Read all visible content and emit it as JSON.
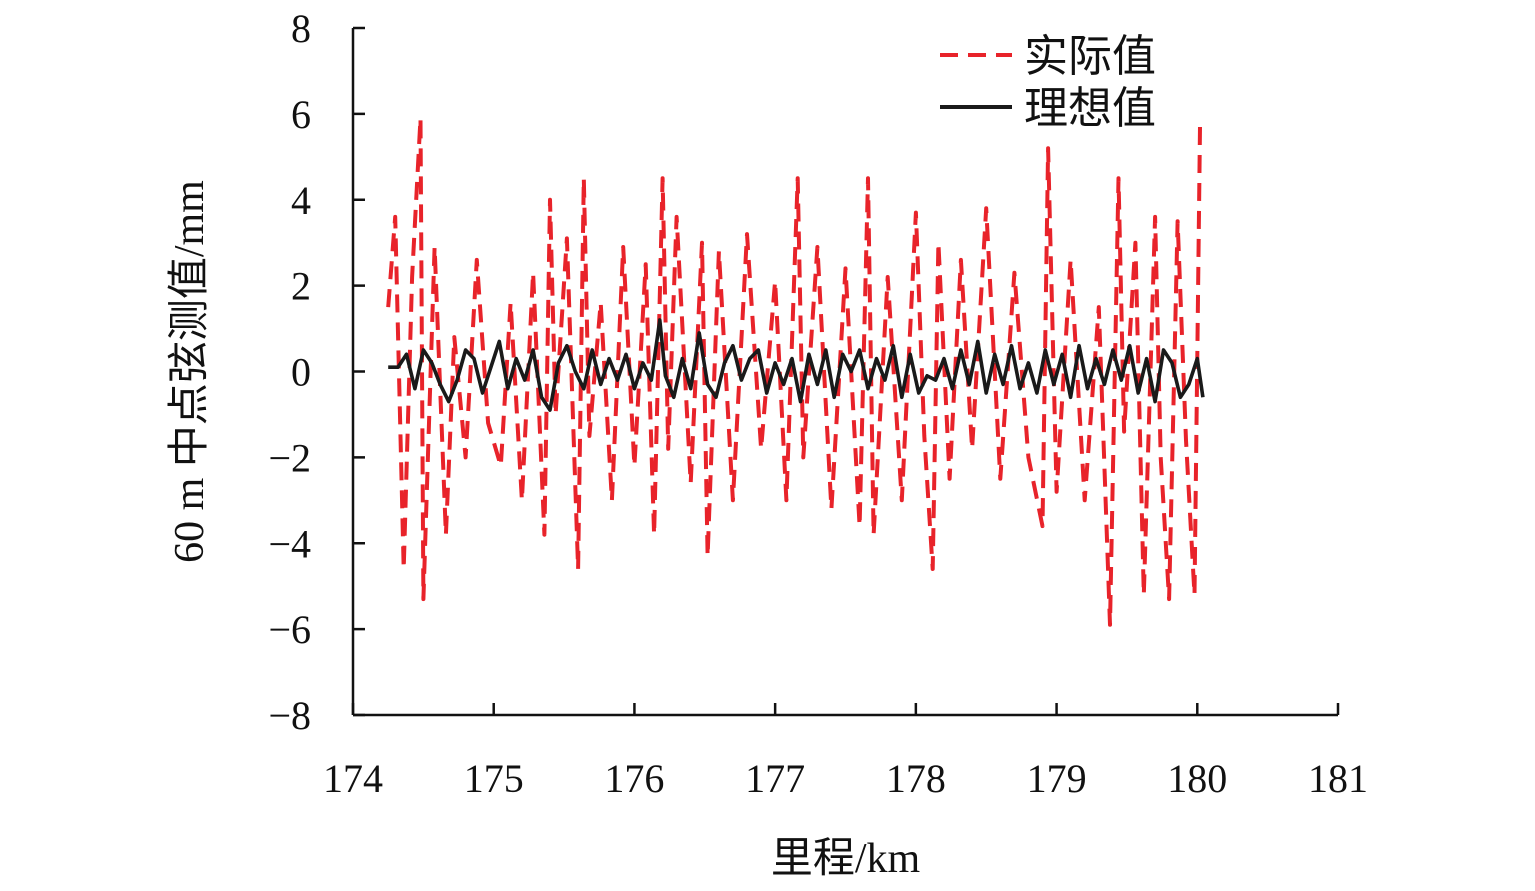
{
  "chart_data": {
    "type": "line",
    "title": "",
    "xlabel": "里程/km",
    "ylabel": "60 m 中点弦测值/mm",
    "xlim": [
      174,
      181
    ],
    "ylim": [
      -8,
      8
    ],
    "x_ticks": [
      "174",
      "175",
      "176",
      "177",
      "178",
      "179",
      "180",
      "181"
    ],
    "y_ticks": [
      "8",
      "6",
      "4",
      "2",
      "0",
      "−2",
      "−4",
      "−6",
      "−8"
    ],
    "grid": false,
    "legend_position": "top-right",
    "colors": {
      "actual": "#e8232a",
      "ideal": "#1a1a1a",
      "axis": "#111111"
    },
    "series": [
      {
        "name": "实际值",
        "style": "dashed",
        "x": [
          174.25,
          174.3,
          174.36,
          174.42,
          174.48,
          174.5,
          174.58,
          174.66,
          174.72,
          174.8,
          174.88,
          174.96,
          175.05,
          175.12,
          175.2,
          175.28,
          175.36,
          175.4,
          175.44,
          175.52,
          175.6,
          175.64,
          175.68,
          175.76,
          175.84,
          175.92,
          176.0,
          176.08,
          176.14,
          176.2,
          176.24,
          176.3,
          176.4,
          176.48,
          176.52,
          176.6,
          176.7,
          176.8,
          176.9,
          177.0,
          177.08,
          177.16,
          177.2,
          177.3,
          177.4,
          177.5,
          177.6,
          177.66,
          177.7,
          177.8,
          177.9,
          178.0,
          178.06,
          178.12,
          178.16,
          178.24,
          178.32,
          178.4,
          178.5,
          178.6,
          178.7,
          178.8,
          178.9,
          178.94,
          179.0,
          179.1,
          179.2,
          179.3,
          179.38,
          179.44,
          179.48,
          179.56,
          179.62,
          179.7,
          179.74,
          179.8,
          179.86,
          179.92,
          179.98,
          180.02
        ],
        "y": [
          1.5,
          3.6,
          -4.6,
          2.2,
          5.9,
          -5.3,
          2.9,
          -3.8,
          0.8,
          -2.0,
          2.6,
          -1.2,
          -2.2,
          1.6,
          -3.0,
          2.3,
          -3.8,
          4.0,
          -1.0,
          3.1,
          -4.6,
          4.5,
          -1.5,
          1.6,
          -3.0,
          2.9,
          -2.2,
          2.5,
          -3.8,
          4.5,
          -1.8,
          3.6,
          -2.6,
          3.0,
          -4.3,
          2.8,
          -3.0,
          3.2,
          -1.8,
          2.1,
          -3.0,
          4.5,
          -2.0,
          2.9,
          -3.2,
          2.4,
          -3.6,
          4.5,
          -3.8,
          2.2,
          -3.0,
          3.7,
          -1.5,
          -4.6,
          3.0,
          -2.5,
          2.6,
          -1.8,
          3.8,
          -2.5,
          2.3,
          -2.0,
          -3.6,
          5.2,
          -2.8,
          2.6,
          -3.0,
          1.5,
          -5.9,
          4.5,
          -1.4,
          3.0,
          -5.2,
          3.6,
          -2.0,
          -5.3,
          3.5,
          -1.6,
          -5.2,
          5.9
        ]
      },
      {
        "name": "理想值",
        "style": "solid",
        "x": [
          174.25,
          174.32,
          174.38,
          174.44,
          174.5,
          174.56,
          174.62,
          174.68,
          174.74,
          174.8,
          174.86,
          174.92,
          174.98,
          175.04,
          175.1,
          175.16,
          175.22,
          175.28,
          175.34,
          175.4,
          175.46,
          175.52,
          175.58,
          175.64,
          175.7,
          175.76,
          175.82,
          175.88,
          175.94,
          176.0,
          176.06,
          176.12,
          176.18,
          176.22,
          176.28,
          176.34,
          176.4,
          176.46,
          176.52,
          176.58,
          176.64,
          176.7,
          176.76,
          176.82,
          176.88,
          176.94,
          177.0,
          177.06,
          177.12,
          177.18,
          177.24,
          177.3,
          177.36,
          177.42,
          177.48,
          177.54,
          177.6,
          177.66,
          177.72,
          177.78,
          177.84,
          177.9,
          177.96,
          178.02,
          178.08,
          178.14,
          178.2,
          178.26,
          178.32,
          178.38,
          178.44,
          178.5,
          178.56,
          178.62,
          178.68,
          178.74,
          178.8,
          178.86,
          178.92,
          178.98,
          179.04,
          179.1,
          179.16,
          179.22,
          179.28,
          179.34,
          179.4,
          179.46,
          179.52,
          179.58,
          179.64,
          179.7,
          179.76,
          179.82,
          179.88,
          179.94,
          180.0,
          180.04
        ],
        "y": [
          0.1,
          0.1,
          0.4,
          -0.4,
          0.5,
          0.2,
          -0.3,
          -0.7,
          -0.2,
          0.5,
          0.3,
          -0.5,
          0.1,
          0.7,
          -0.4,
          0.3,
          -0.2,
          0.5,
          -0.6,
          -0.9,
          0.2,
          0.6,
          0.0,
          -0.4,
          0.5,
          -0.3,
          0.3,
          -0.2,
          0.4,
          -0.4,
          0.2,
          -0.2,
          1.2,
          -0.1,
          -0.6,
          0.3,
          -0.4,
          0.9,
          -0.3,
          -0.6,
          0.2,
          0.6,
          -0.2,
          0.3,
          0.5,
          -0.5,
          0.2,
          -0.3,
          0.3,
          -0.7,
          0.4,
          -0.3,
          0.5,
          -0.6,
          0.4,
          0.0,
          0.5,
          -0.4,
          0.3,
          -0.2,
          0.6,
          -0.6,
          0.4,
          -0.5,
          -0.1,
          -0.2,
          0.3,
          -0.4,
          0.5,
          -0.3,
          0.7,
          -0.5,
          0.4,
          -0.3,
          0.6,
          -0.4,
          0.2,
          -0.5,
          0.5,
          -0.3,
          0.4,
          -0.6,
          0.6,
          -0.4,
          0.3,
          -0.3,
          0.5,
          -0.2,
          0.6,
          -0.5,
          0.3,
          -0.7,
          0.5,
          0.2,
          -0.6,
          -0.3,
          0.3,
          -0.6
        ]
      }
    ]
  }
}
